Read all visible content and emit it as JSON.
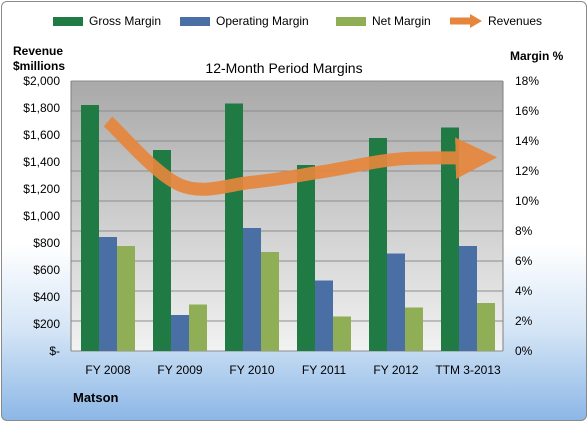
{
  "company": "Matson",
  "chart_data": {
    "type": "bar",
    "title": "12-Month Period Margins",
    "left_axis_label": [
      "Revenue",
      "$millions"
    ],
    "right_axis_label": "Margin %",
    "categories": [
      "FY 2008",
      "FY 2009",
      "FY 2010",
      "FY 2011",
      "FY 2012",
      "TTM 3-2013"
    ],
    "left_ylim": [
      0,
      2000
    ],
    "left_ticks": [
      "$-",
      "$200",
      "$400",
      "$600",
      "$800",
      "$1,000",
      "$1,200",
      "$1,400",
      "$1,600",
      "$1,800",
      "$2,000"
    ],
    "right_ylim": [
      0,
      18
    ],
    "right_ticks": [
      "0%",
      "2%",
      "4%",
      "6%",
      "8%",
      "10%",
      "12%",
      "14%",
      "16%",
      "18%"
    ],
    "legend_position": "top",
    "series": [
      {
        "name": "Gross Margin",
        "type": "bar",
        "axis": "right",
        "color": "#1f7a44",
        "values": [
          16.4,
          13.4,
          16.5,
          12.4,
          14.2,
          14.9
        ]
      },
      {
        "name": "Operating Margin",
        "type": "bar",
        "axis": "right",
        "color": "#4a6fa5",
        "values": [
          7.6,
          2.4,
          8.2,
          4.7,
          6.5,
          7.0
        ]
      },
      {
        "name": "Net Margin",
        "type": "bar",
        "axis": "right",
        "color": "#8fae55",
        "values": [
          7.0,
          3.1,
          6.6,
          2.3,
          2.9,
          3.2
        ]
      },
      {
        "name": "Revenues",
        "type": "line",
        "axis": "left",
        "color": "#e6863c",
        "values": [
          1700,
          1230,
          1250,
          1330,
          1420,
          1430
        ]
      }
    ]
  }
}
